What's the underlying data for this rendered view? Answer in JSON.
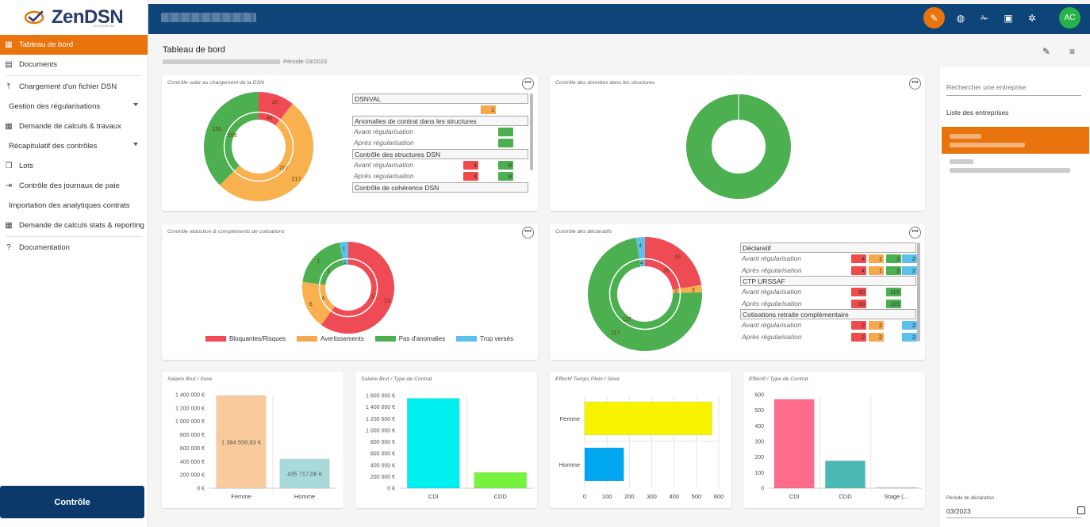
{
  "app": {
    "logo": "ZenDSN",
    "logo_sub": "BY EXCELSIA",
    "avatar_initials": "AC"
  },
  "sidebar": {
    "items": [
      {
        "label": "Tableau de bord",
        "icon": "dashboard-icon",
        "active": true
      },
      {
        "label": "Documents",
        "icon": "document-icon"
      },
      {
        "label": "Chargement d'un fichier DSN",
        "icon": "upload-icon"
      },
      {
        "label": "Gestion des régularisations",
        "icon": "",
        "caret": true
      },
      {
        "label": "Demande de calculs & travaux",
        "icon": "grid-icon"
      },
      {
        "label": "Récapitulatif des contrôles",
        "icon": "",
        "caret": true
      },
      {
        "label": "Lots",
        "icon": "stack-icon"
      },
      {
        "label": "Contrôle des journaux de paie",
        "icon": "arrow-icon"
      },
      {
        "label": "Importation des analytiques contrats",
        "icon": ""
      },
      {
        "label": "Demande de calculs stats & reporting",
        "icon": "grid-icon"
      },
      {
        "label": "Documentation",
        "icon": "help-icon"
      }
    ],
    "bottom_button": "Contrôle"
  },
  "page": {
    "title": "Tableau de bord",
    "period": "Période 03/2023"
  },
  "cards": {
    "dsn": {
      "title": "Contrôle suite au chargement de la DSN",
      "donut_labels": {
        "outer_red": "45",
        "inner_red": "45",
        "outer_orange": "217",
        "inner_orange": "217",
        "outer_green": "155",
        "inner_green": "155"
      },
      "table": {
        "rows": [
          {
            "type": "hdr",
            "label": "DSNVAL"
          },
          {
            "type": "row",
            "label": "",
            "chips": [
              {
                "color": "#f5a94f",
                "value": "1",
                "col": 1
              }
            ]
          },
          {
            "type": "hdr",
            "label": "Anomalies de contrat dans les structures"
          },
          {
            "type": "row",
            "label": "Avant régularisation",
            "chips": [
              {
                "color": "#4caf50",
                "value": "",
                "col": 2
              }
            ]
          },
          {
            "type": "row",
            "label": "Après régularisation",
            "chips": [
              {
                "color": "#4caf50",
                "value": "",
                "col": 2
              }
            ]
          },
          {
            "type": "hdr",
            "label": "Contrôle des structures DSN"
          },
          {
            "type": "row",
            "label": "Avant régularisation",
            "chips": [
              {
                "color": "#ef4b4b",
                "value": "4",
                "col": 0
              },
              {
                "color": "#4caf50",
                "value": "8",
                "col": 2
              }
            ]
          },
          {
            "type": "row",
            "label": "Après régularisation",
            "chips": [
              {
                "color": "#ef4b4b",
                "value": "4",
                "col": 0
              },
              {
                "color": "#4caf50",
                "value": "8",
                "col": 2
              }
            ]
          },
          {
            "type": "hdr",
            "label": "Contrôle de cohérence DSN"
          }
        ]
      }
    },
    "structures": {
      "title": "Contrôle des données dans les structures",
      "donut_label": "1"
    },
    "cotisations": {
      "title": "Contrôle réduction & compléments de cotisations",
      "labels": {
        "red_o": "13",
        "red_i": "13",
        "orange_o": "6",
        "orange_i": "6",
        "green_o": "1",
        "green_i": "1",
        "blue_o": "1",
        "blue_i": "1"
      },
      "legend": [
        {
          "label": "Bloquantes/Risques",
          "color": "#ef4b55"
        },
        {
          "label": "Avertissements",
          "color": "#f5a94f"
        },
        {
          "label": "Pas d'anomalies",
          "color": "#4caf50"
        },
        {
          "label": "Trop versés",
          "color": "#5bc0eb"
        }
      ]
    },
    "declaratifs": {
      "title": "Contrôle des déclaratifs",
      "labels": {
        "red_o": "36",
        "red_i": "36",
        "orange_o": "3",
        "orange_i": "3",
        "green_o": "117",
        "green_i": "117",
        "blue_o": "4",
        "blue_i": "4"
      },
      "table": {
        "rows": [
          {
            "type": "hdr",
            "label": "Déclaratif"
          },
          {
            "type": "row",
            "label": "Avant régularisation",
            "chips": [
              {
                "color": "#ef4b4b",
                "value": "4",
                "col": 0
              },
              {
                "color": "#f5a94f",
                "value": "1",
                "col": 1
              },
              {
                "color": "#4caf50",
                "value": "3",
                "col": 2
              },
              {
                "color": "#5bc0eb",
                "value": "2",
                "col": 3
              }
            ]
          },
          {
            "type": "row",
            "label": "Après régularisation",
            "chips": [
              {
                "color": "#ef4b4b",
                "value": "4",
                "col": 0
              },
              {
                "color": "#f5a94f",
                "value": "1",
                "col": 1
              },
              {
                "color": "#4caf50",
                "value": "3",
                "col": 2
              },
              {
                "color": "#5bc0eb",
                "value": "2",
                "col": 3
              }
            ]
          },
          {
            "type": "hdr",
            "label": "CTP URSSAF"
          },
          {
            "type": "row",
            "label": "Avant régularisation",
            "chips": [
              {
                "color": "#ef4b4b",
                "value": "30",
                "col": 0
              },
              {
                "color": "#4caf50",
                "value": "115",
                "col": 2
              }
            ]
          },
          {
            "type": "row",
            "label": "Après régularisation",
            "chips": [
              {
                "color": "#ef4b4b",
                "value": "30",
                "col": 0
              },
              {
                "color": "#4caf50",
                "value": "115",
                "col": 2
              }
            ]
          },
          {
            "type": "hdr",
            "label": "Cotisations retraite complémentaire"
          },
          {
            "type": "row",
            "label": "Avant régularisation",
            "chips": [
              {
                "color": "#ef4b4b",
                "value": "2",
                "col": 0
              },
              {
                "color": "#f5a94f",
                "value": "2",
                "col": 1
              },
              {
                "color": "#5bc0eb",
                "value": "2",
                "col": 3
              }
            ]
          },
          {
            "type": "row",
            "label": "Après régularisation",
            "chips": [
              {
                "color": "#ef4b4b",
                "value": "2",
                "col": 0
              },
              {
                "color": "#f5a94f",
                "value": "2",
                "col": 1
              },
              {
                "color": "#5bc0eb",
                "value": "2",
                "col": 3
              }
            ]
          }
        ]
      }
    }
  },
  "chart_data": [
    {
      "type": "bar",
      "title": "Salaire Brut / Sexe",
      "categories": [
        "Femme",
        "Homme"
      ],
      "values": [
        1384558.83,
        435717.06
      ],
      "value_labels": [
        "1 384 558,83 €",
        "435 717,06 €"
      ],
      "colors": [
        "#f9cb9c",
        "#a8dadc"
      ],
      "yticks": [
        "1 400 000 €",
        "1 200 000 €",
        "1 000 000 €",
        "800 000 €",
        "600 000 €",
        "400 000 €",
        "200 000 €",
        "0 €"
      ],
      "ylim": [
        0,
        1400000
      ]
    },
    {
      "type": "bar",
      "title": "Salaire Brut / Type de Contrat",
      "categories": [
        "CDI",
        "CDD"
      ],
      "values": [
        1550000,
        270000
      ],
      "colors": [
        "#00f0f0",
        "#77f23f"
      ],
      "yticks": [
        "1 600 000 €",
        "1 400 000 €",
        "1 200 000 €",
        "1 000 000 €",
        "800 000 €",
        "600 000 €",
        "400 000 €",
        "200 000 €",
        "0 €"
      ],
      "ylim": [
        0,
        1600000
      ]
    },
    {
      "type": "bar",
      "orientation": "horizontal",
      "title": "Effectif Temps Plein / Sexe",
      "categories": [
        "Femme",
        "Homme"
      ],
      "values": [
        570,
        175
      ],
      "colors": [
        "#f8f400",
        "#00a7f0"
      ],
      "xticks": [
        "0",
        "100",
        "200",
        "300",
        "400",
        "500",
        "600"
      ],
      "xlim": [
        0,
        600
      ]
    },
    {
      "type": "bar",
      "title": "Effectif / Type de Contrat",
      "categories": [
        "CDI",
        "CDD",
        "Stage (..."
      ],
      "values": [
        570,
        175,
        5
      ],
      "colors": [
        "#ff6b8a",
        "#4bbab5",
        "#a8dadc"
      ],
      "yticks": [
        "600",
        "500",
        "400",
        "300",
        "200",
        "100",
        "0"
      ],
      "ylim": [
        0,
        600
      ]
    }
  ],
  "right_panel": {
    "search_placeholder": "Rechercher une entreprise",
    "list_title": "Liste des entreprises",
    "period_label": "Période de déclaration",
    "period_value": "03/2023"
  }
}
